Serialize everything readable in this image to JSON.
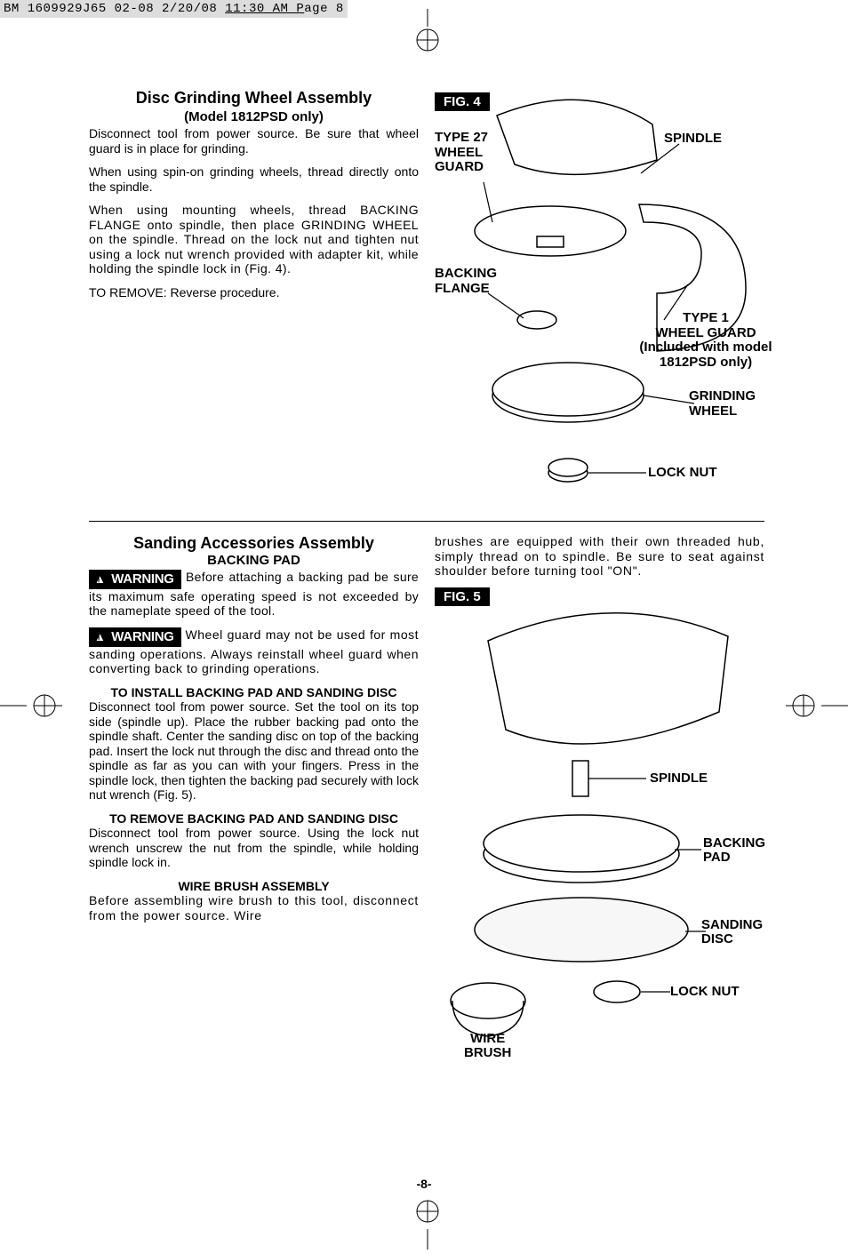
{
  "crop_header": {
    "prefix": "BM 1609929J65 02-08  2/20/08  ",
    "underlined": "11:30 AM  P",
    "suffix": "age 8"
  },
  "page_number": "-8-",
  "section1": {
    "title": "Disc Grinding Wheel Assembly",
    "subtitle": "(Model 1812PSD only)",
    "p1": "Disconnect tool from power source. Be sure that wheel guard is in place for grinding.",
    "p2": "When using spin-on grinding wheels, thread directly onto the spindle.",
    "p3": "When using mounting wheels, thread BACKING FLANGE onto spindle, then place GRINDING WHEEL on the spindle. Thread on the lock nut and tighten nut using a lock nut wrench provided with adapter kit, while holding the spindle lock in (Fig. 4).",
    "p4": "TO REMOVE: Reverse procedure."
  },
  "fig4": {
    "label": "FIG. 4",
    "callouts": {
      "type27": "TYPE 27\nWHEEL\nGUARD",
      "spindle": "SPINDLE",
      "backing_flange": "BACKING\nFLANGE",
      "type1": "TYPE 1\nWHEEL GUARD\n(Included with model\n1812PSD only)",
      "grinding_wheel": "GRINDING\nWHEEL",
      "lock_nut": "LOCK NUT"
    }
  },
  "section2": {
    "title": "Sanding Accessories Assembly",
    "sub_backing": "BACKING PAD",
    "warn_label": "WARNING",
    "warn1_text": "Before attaching a backing pad be sure its maximum safe operating speed is not exceeded by the nameplate speed of the tool.",
    "warn2_text": "Wheel guard may not be used for most sanding operations. Always reinstall wheel guard when converting back to grinding operations.",
    "install_h": "TO INSTALL BACKING PAD AND SANDING DISC",
    "install_p": "Disconnect tool from power source. Set the tool on its top side (spindle up). Place the rubber backing pad onto the spindle shaft. Center the sanding disc on top of the backing pad. Insert the lock nut through the disc and thread onto the spindle as far as you can with your fingers. Press in the spindle lock, then tighten the backing pad securely with lock nut wrench (Fig. 5).",
    "remove_h": "TO REMOVE BACKING PAD AND SANDING DISC",
    "remove_p": "Disconnect tool from power source. Using the lock nut wrench unscrew the nut from the spindle, while holding spindle lock in.",
    "wire_h": "WIRE BRUSH ASSEMBLY",
    "wire_p1": "Before assembling wire brush to this tool, disconnect from the power source. Wire",
    "wire_p2": "brushes are equipped with their own threaded hub, simply thread on to spindle. Be sure to seat against shoulder before turning tool \"ON\"."
  },
  "fig5": {
    "label": "FIG. 5",
    "callouts": {
      "spindle": "SPINDLE",
      "backing_pad": "BACKING\nPAD",
      "sanding_disc": "SANDING\nDISC",
      "lock_nut": "LOCK NUT",
      "wire_brush": "WIRE\nBRUSH"
    }
  }
}
